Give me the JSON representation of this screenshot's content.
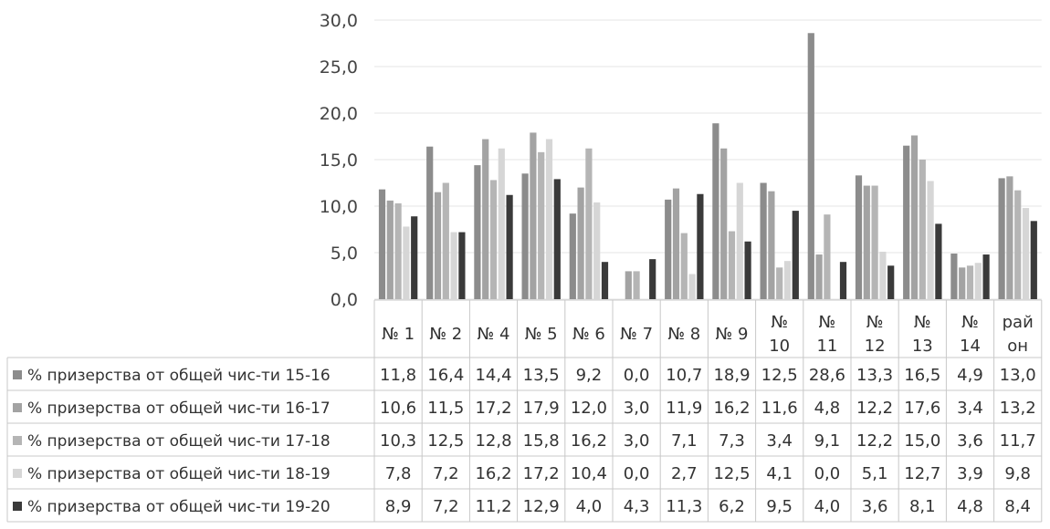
{
  "chart_data": {
    "type": "bar",
    "categories": [
      [
        "№ 1"
      ],
      [
        "№ 2"
      ],
      [
        "№ 4"
      ],
      [
        "№ 5"
      ],
      [
        "№ 6"
      ],
      [
        "№ 7"
      ],
      [
        "№ 8"
      ],
      [
        "№ 9"
      ],
      [
        "№",
        "10"
      ],
      [
        "№",
        "11"
      ],
      [
        "№",
        "12"
      ],
      [
        "№",
        "13"
      ],
      [
        "№",
        "14"
      ],
      [
        "рай",
        "он"
      ]
    ],
    "yticks": [
      "0,0",
      "5,0",
      "10,0",
      "15,0",
      "20,0",
      "25,0",
      "30,0"
    ],
    "ylim": [
      0,
      30
    ],
    "grid": true,
    "legend_placement": "data-table-left",
    "series": [
      {
        "name": "% призерства от общей чис-ти 15-16",
        "color": "#8c8c8c",
        "values": [
          11.8,
          16.4,
          14.4,
          13.5,
          9.2,
          0.0,
          10.7,
          18.9,
          12.5,
          28.6,
          13.3,
          16.5,
          4.9,
          13.0
        ],
        "labels": [
          "11,8",
          "16,4",
          "14,4",
          "13,5",
          "9,2",
          "0,0",
          "10,7",
          "18,9",
          "12,5",
          "28,6",
          "13,3",
          "16,5",
          "4,9",
          "13,0"
        ]
      },
      {
        "name": "% призерства от общей чис-ти 16-17",
        "color": "#a3a3a3",
        "values": [
          10.6,
          11.5,
          17.2,
          17.9,
          12.0,
          3.0,
          11.9,
          16.2,
          11.6,
          4.8,
          12.2,
          17.6,
          3.4,
          13.2
        ],
        "labels": [
          "10,6",
          "11,5",
          "17,2",
          "17,9",
          "12,0",
          "3,0",
          "11,9",
          "16,2",
          "11,6",
          "4,8",
          "12,2",
          "17,6",
          "3,4",
          "13,2"
        ]
      },
      {
        "name": "% призерства от общей чис-ти 17-18",
        "color": "#b5b5b5",
        "values": [
          10.3,
          12.5,
          12.8,
          15.8,
          16.2,
          3.0,
          7.1,
          7.3,
          3.4,
          9.1,
          12.2,
          15.0,
          3.6,
          11.7
        ],
        "labels": [
          "10,3",
          "12,5",
          "12,8",
          "15,8",
          "16,2",
          "3,0",
          "7,1",
          "7,3",
          "3,4",
          "9,1",
          "12,2",
          "15,0",
          "3,6",
          "11,7"
        ]
      },
      {
        "name": "% призерства от общей чис-ти 18-19",
        "color": "#d6d6d6",
        "values": [
          7.8,
          7.2,
          16.2,
          17.2,
          10.4,
          0.0,
          2.7,
          12.5,
          4.1,
          0.0,
          5.1,
          12.7,
          3.9,
          9.8
        ],
        "labels": [
          "7,8",
          "7,2",
          "16,2",
          "17,2",
          "10,4",
          "0,0",
          "2,7",
          "12,5",
          "4,1",
          "0,0",
          "5,1",
          "12,7",
          "3,9",
          "9,8"
        ]
      },
      {
        "name": "% призерства от общей чис-ти 19-20",
        "color": "#3a3a3a",
        "values": [
          8.9,
          7.2,
          11.2,
          12.9,
          4.0,
          4.3,
          11.3,
          6.2,
          9.5,
          4.0,
          3.6,
          8.1,
          4.8,
          8.4
        ],
        "labels": [
          "8,9",
          "7,2",
          "11,2",
          "12,9",
          "4,0",
          "4,3",
          "11,3",
          "6,2",
          "9,5",
          "4,0",
          "3,6",
          "8,1",
          "4,8",
          "8,4"
        ]
      }
    ]
  }
}
